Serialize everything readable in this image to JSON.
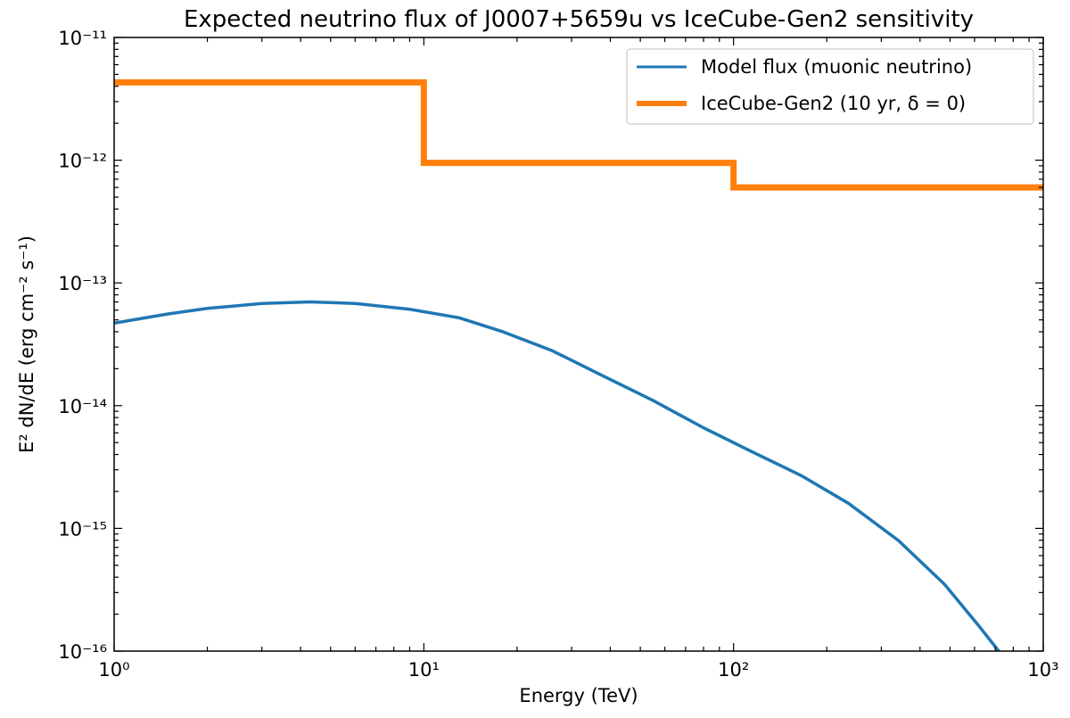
{
  "chart_data": {
    "type": "line",
    "title": "Expected neutrino flux of J0007+5659u vs IceCube-Gen2 sensitivity",
    "xlabel": "Energy (TeV)",
    "ylabel": "E² dN/dE (erg cm⁻² s⁻¹)",
    "xscale": "log",
    "yscale": "log",
    "xlim": [
      1,
      1000
    ],
    "ylim": [
      1e-16,
      1e-11
    ],
    "x_tick_values": [
      1,
      10,
      100,
      1000
    ],
    "x_tick_labels": [
      "10⁰",
      "10¹",
      "10²",
      "10³"
    ],
    "y_tick_values": [
      1e-16,
      1e-15,
      1e-14,
      1e-13,
      1e-12,
      1e-11
    ],
    "y_tick_labels": [
      "10⁻¹⁶",
      "10⁻¹⁵",
      "10⁻¹⁴",
      "10⁻¹³",
      "10⁻¹²",
      "10⁻¹¹"
    ],
    "legend_position": "top-right",
    "series": [
      {
        "name": "Model flux (muonic neutrino)",
        "color": "#1f77b4",
        "style": "line",
        "x": [
          1.0,
          1.5,
          2.0,
          3.0,
          4.3,
          6.0,
          9.0,
          13.0,
          18.0,
          26.0,
          37.0,
          55.0,
          80.0,
          115.0,
          165.0,
          235.0,
          340.0,
          480.0,
          620.0,
          730.0
        ],
        "y": [
          4.7e-14,
          5.6e-14,
          6.2e-14,
          6.8e-14,
          7e-14,
          6.8e-14,
          6.1e-14,
          5.2e-14,
          4e-14,
          2.8e-14,
          1.8e-14,
          1.1e-14,
          6.6e-15,
          4.2e-15,
          2.7e-15,
          1.6e-15,
          8e-16,
          3.5e-16,
          1.6e-16,
          9.5e-17
        ]
      },
      {
        "name": "IceCube-Gen2 (10 yr, δ = 0)",
        "color": "#ff7f0e",
        "style": "step",
        "x": [
          1,
          10,
          10,
          100,
          100,
          1000
        ],
        "y": [
          4.3e-12,
          4.3e-12,
          9.5e-13,
          9.5e-13,
          6e-13,
          6e-13
        ]
      }
    ]
  }
}
